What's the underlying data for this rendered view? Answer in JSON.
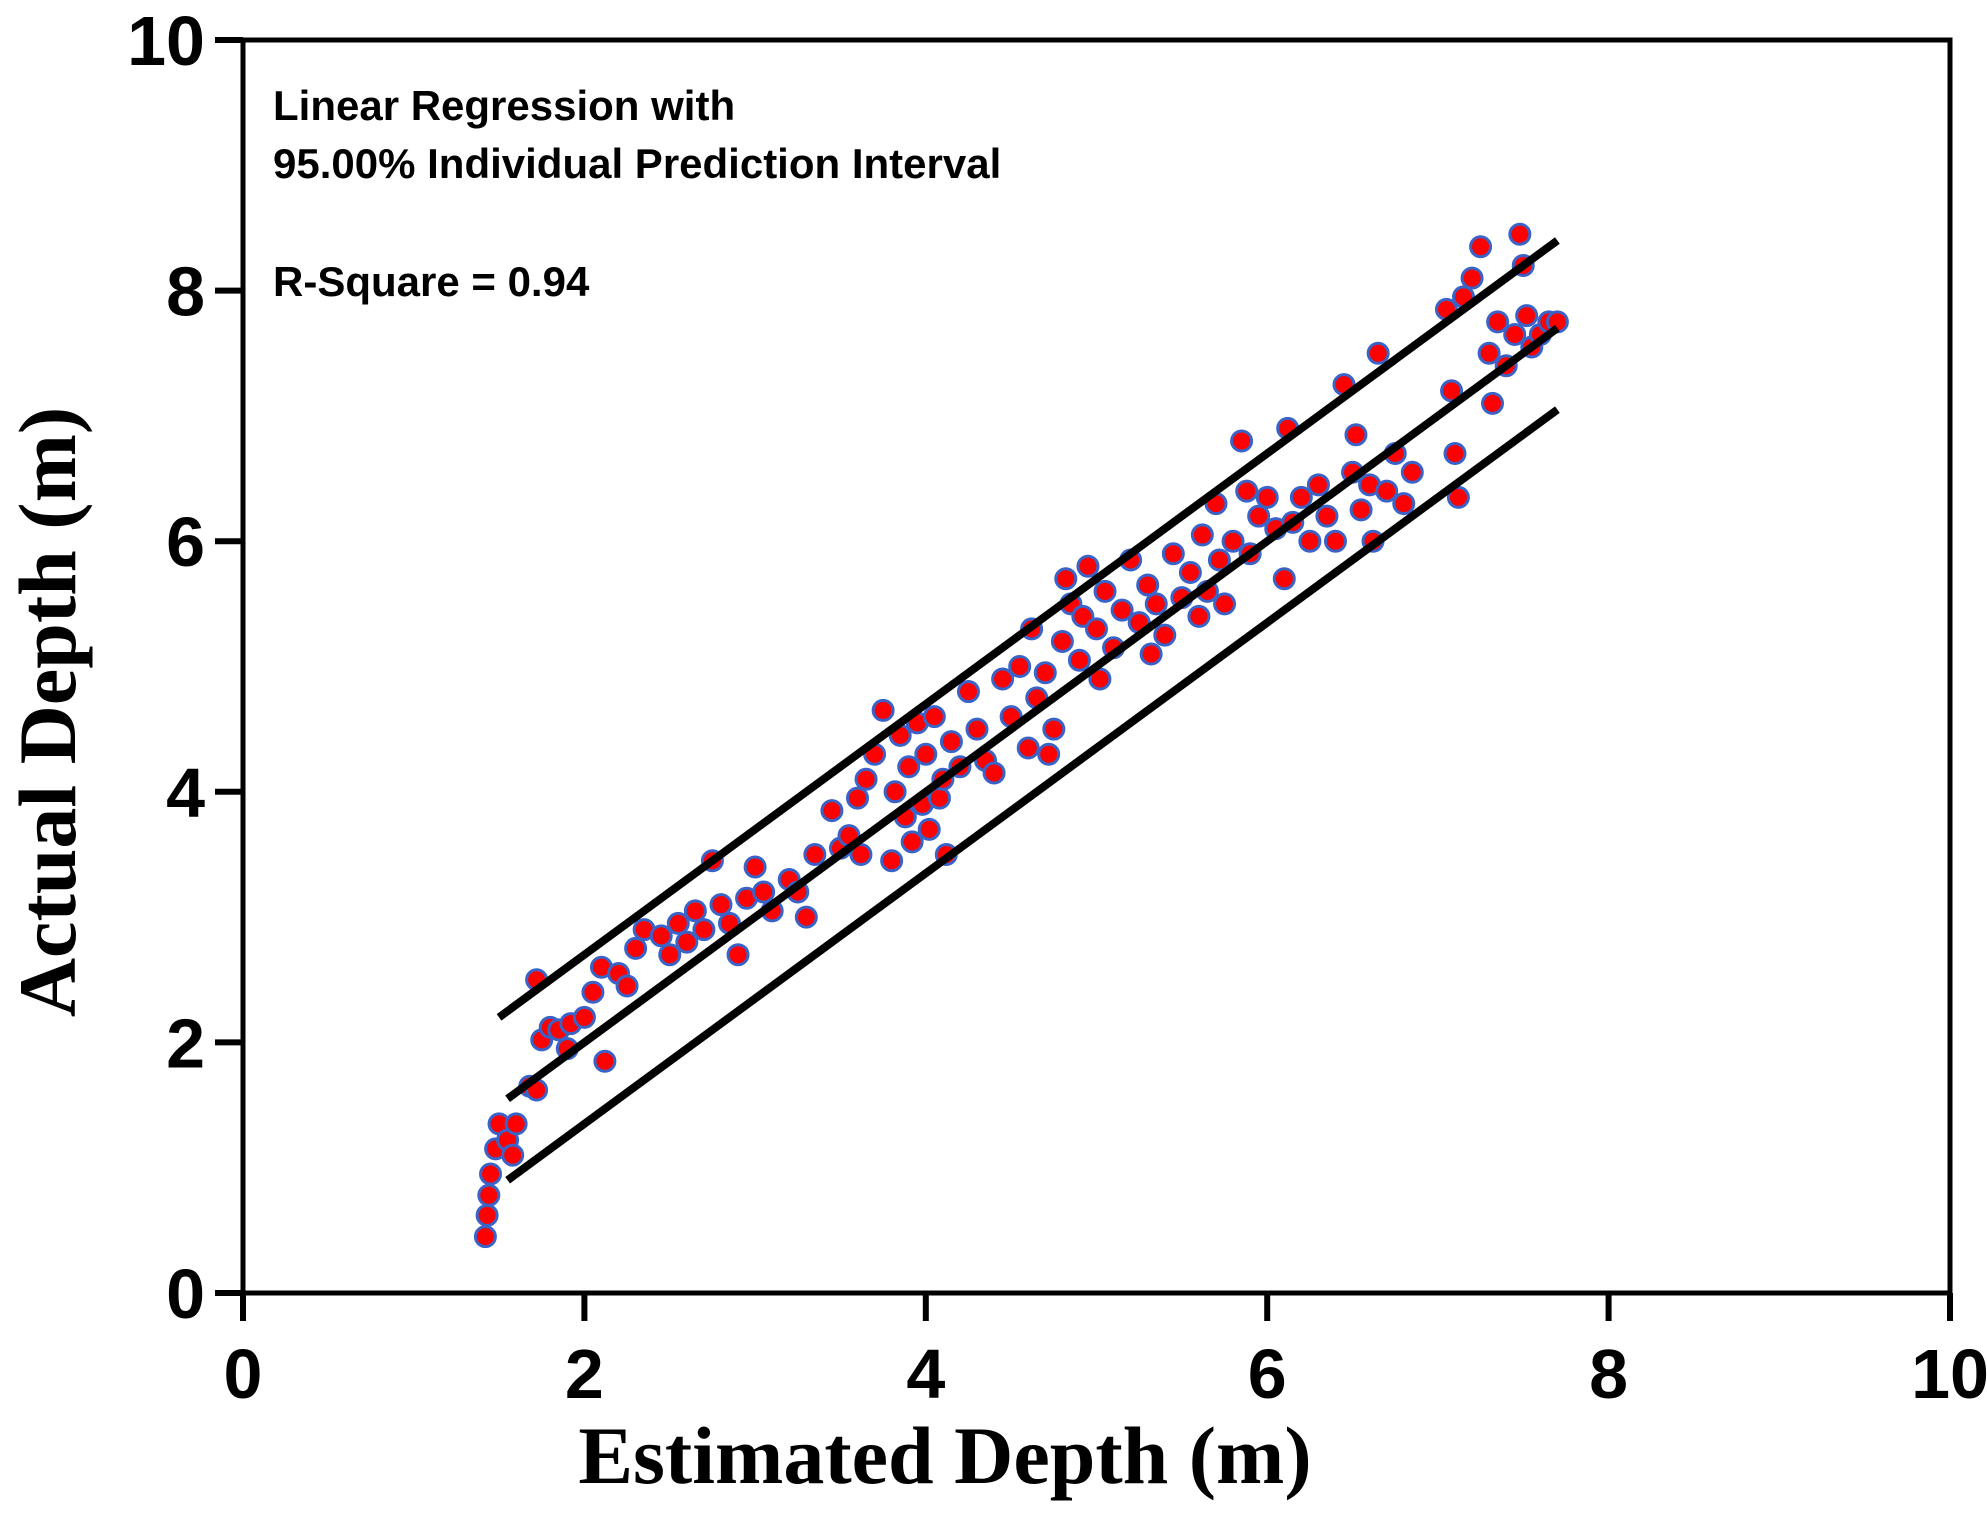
{
  "chart_data": {
    "type": "scatter",
    "title": "",
    "xlabel": "Estimated Depth (m)",
    "ylabel": "Actual Depth (m)",
    "xlim": [
      0,
      10
    ],
    "ylim": [
      0,
      10
    ],
    "x_ticks": [
      "0",
      "2",
      "4",
      "6",
      "8",
      "10"
    ],
    "y_ticks": [
      "0",
      "2",
      "4",
      "6",
      "8",
      "10"
    ],
    "grid": false,
    "annotations": [
      "Linear Regression with",
      "95.00% Individual Prediction Interval",
      "R-Square = 0.94"
    ],
    "colors": {
      "marker_fill": "#ff0000",
      "marker_edge": "#3a63c8",
      "lines": "#000000"
    },
    "regression_line": {
      "x": [
        1.55,
        7.7
      ],
      "y": [
        1.55,
        7.7
      ]
    },
    "upper_prediction_interval": {
      "x": [
        1.5,
        7.7
      ],
      "y": [
        2.2,
        8.4
      ]
    },
    "lower_prediction_interval": {
      "x": [
        1.55,
        7.7
      ],
      "y": [
        0.9,
        7.05
      ]
    },
    "series": [
      {
        "values": [
          [
            1.42,
            0.45
          ],
          [
            1.43,
            0.62
          ],
          [
            1.44,
            0.78
          ],
          [
            1.45,
            0.95
          ],
          [
            1.48,
            1.15
          ],
          [
            1.5,
            1.35
          ],
          [
            1.55,
            1.22
          ],
          [
            1.58,
            1.1
          ],
          [
            1.6,
            1.35
          ],
          [
            1.68,
            1.65
          ],
          [
            1.72,
            1.62
          ],
          [
            1.75,
            2.02
          ],
          [
            1.8,
            2.12
          ],
          [
            1.85,
            2.1
          ],
          [
            1.9,
            1.95
          ],
          [
            1.92,
            2.15
          ],
          [
            1.72,
            2.5
          ],
          [
            2.0,
            2.2
          ],
          [
            2.05,
            2.4
          ],
          [
            2.1,
            2.6
          ],
          [
            2.12,
            1.85
          ],
          [
            2.2,
            2.55
          ],
          [
            2.25,
            2.45
          ],
          [
            2.3,
            2.75
          ],
          [
            2.35,
            2.9
          ],
          [
            2.45,
            2.85
          ],
          [
            2.5,
            2.7
          ],
          [
            2.55,
            2.95
          ],
          [
            2.6,
            2.8
          ],
          [
            2.65,
            3.05
          ],
          [
            2.7,
            2.9
          ],
          [
            2.75,
            3.45
          ],
          [
            2.8,
            3.1
          ],
          [
            2.85,
            2.95
          ],
          [
            2.9,
            2.7
          ],
          [
            2.95,
            3.15
          ],
          [
            3.0,
            3.4
          ],
          [
            3.05,
            3.2
          ],
          [
            3.1,
            3.05
          ],
          [
            3.2,
            3.3
          ],
          [
            3.25,
            3.2
          ],
          [
            3.3,
            3.0
          ],
          [
            3.35,
            3.5
          ],
          [
            3.45,
            3.85
          ],
          [
            3.5,
            3.55
          ],
          [
            3.55,
            3.65
          ],
          [
            3.6,
            3.95
          ],
          [
            3.62,
            3.5
          ],
          [
            3.65,
            4.1
          ],
          [
            3.7,
            4.3
          ],
          [
            3.75,
            4.65
          ],
          [
            3.8,
            3.45
          ],
          [
            3.82,
            4.0
          ],
          [
            3.85,
            4.45
          ],
          [
            3.88,
            3.8
          ],
          [
            3.9,
            4.2
          ],
          [
            3.92,
            3.6
          ],
          [
            3.95,
            4.55
          ],
          [
            3.98,
            3.9
          ],
          [
            4.0,
            4.3
          ],
          [
            4.02,
            3.7
          ],
          [
            4.05,
            4.6
          ],
          [
            4.08,
            3.95
          ],
          [
            4.1,
            4.1
          ],
          [
            4.12,
            3.5
          ],
          [
            4.15,
            4.4
          ],
          [
            4.2,
            4.2
          ],
          [
            4.25,
            4.8
          ],
          [
            4.3,
            4.5
          ],
          [
            4.35,
            4.25
          ],
          [
            4.4,
            4.15
          ],
          [
            4.45,
            4.9
          ],
          [
            4.5,
            4.6
          ],
          [
            4.55,
            5.0
          ],
          [
            4.6,
            4.35
          ],
          [
            4.62,
            5.3
          ],
          [
            4.65,
            4.75
          ],
          [
            4.7,
            4.95
          ],
          [
            4.72,
            4.3
          ],
          [
            4.75,
            4.5
          ],
          [
            4.8,
            5.2
          ],
          [
            4.82,
            5.7
          ],
          [
            4.85,
            5.5
          ],
          [
            4.9,
            5.05
          ],
          [
            4.92,
            5.4
          ],
          [
            4.95,
            5.8
          ],
          [
            5.0,
            5.3
          ],
          [
            5.02,
            4.9
          ],
          [
            5.05,
            5.6
          ],
          [
            5.1,
            5.15
          ],
          [
            5.15,
            5.45
          ],
          [
            5.2,
            5.85
          ],
          [
            5.25,
            5.35
          ],
          [
            5.3,
            5.65
          ],
          [
            5.32,
            5.1
          ],
          [
            5.35,
            5.5
          ],
          [
            5.4,
            5.25
          ],
          [
            5.45,
            5.9
          ],
          [
            5.5,
            5.55
          ],
          [
            5.55,
            5.75
          ],
          [
            5.6,
            5.4
          ],
          [
            5.62,
            6.05
          ],
          [
            5.65,
            5.6
          ],
          [
            5.7,
            6.3
          ],
          [
            5.72,
            5.85
          ],
          [
            5.75,
            5.5
          ],
          [
            5.8,
            6.0
          ],
          [
            5.85,
            6.8
          ],
          [
            5.88,
            6.4
          ],
          [
            5.9,
            5.9
          ],
          [
            5.95,
            6.2
          ],
          [
            6.0,
            6.35
          ],
          [
            6.05,
            6.1
          ],
          [
            6.1,
            5.7
          ],
          [
            6.12,
            6.9
          ],
          [
            6.15,
            6.15
          ],
          [
            6.2,
            6.35
          ],
          [
            6.25,
            6.0
          ],
          [
            6.3,
            6.45
          ],
          [
            6.35,
            6.2
          ],
          [
            6.4,
            6.0
          ],
          [
            6.45,
            7.25
          ],
          [
            6.5,
            6.55
          ],
          [
            6.52,
            6.85
          ],
          [
            6.55,
            6.25
          ],
          [
            6.6,
            6.45
          ],
          [
            6.62,
            6.0
          ],
          [
            6.65,
            7.5
          ],
          [
            6.7,
            6.4
          ],
          [
            6.75,
            6.7
          ],
          [
            6.8,
            6.3
          ],
          [
            6.85,
            6.55
          ],
          [
            7.05,
            7.85
          ],
          [
            7.08,
            7.2
          ],
          [
            7.1,
            6.7
          ],
          [
            7.12,
            6.35
          ],
          [
            7.15,
            7.95
          ],
          [
            7.2,
            8.1
          ],
          [
            7.25,
            8.35
          ],
          [
            7.3,
            7.5
          ],
          [
            7.32,
            7.1
          ],
          [
            7.35,
            7.75
          ],
          [
            7.4,
            7.4
          ],
          [
            7.45,
            7.65
          ],
          [
            7.48,
            8.45
          ],
          [
            7.5,
            8.2
          ],
          [
            7.52,
            7.8
          ],
          [
            7.55,
            7.55
          ],
          [
            7.6,
            7.65
          ],
          [
            7.65,
            7.75
          ],
          [
            7.7,
            7.75
          ]
        ]
      }
    ]
  }
}
